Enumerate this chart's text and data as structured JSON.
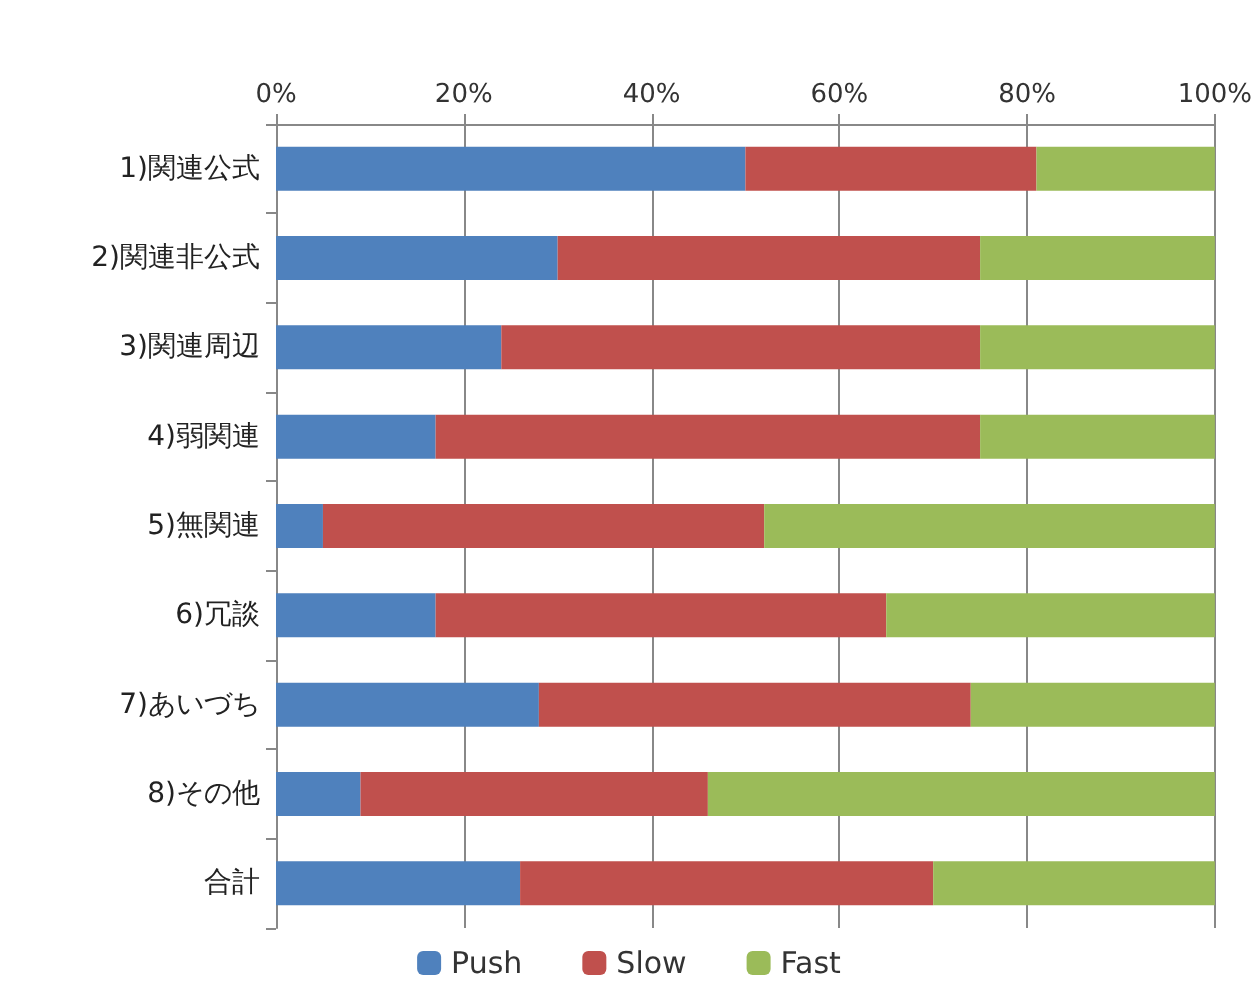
{
  "chart_data": {
    "type": "bar",
    "orientation": "horizontal",
    "stacked": true,
    "categories": [
      "1)関連公式",
      "2)関連非公式",
      "3)関連周辺",
      "4)弱関連",
      "5)無関連",
      "6)冗談",
      "7)あいづち",
      "8)その他",
      "合計"
    ],
    "series": [
      {
        "name": "Push",
        "color": "#4f81bd",
        "values": [
          50,
          30,
          24,
          17,
          5,
          17,
          28,
          9,
          26
        ]
      },
      {
        "name": "Slow",
        "color": "#c0504d",
        "values": [
          31,
          45,
          51,
          58,
          47,
          48,
          46,
          37,
          44
        ]
      },
      {
        "name": "Fast",
        "color": "#9bbb59",
        "values": [
          19,
          25,
          25,
          25,
          48,
          35,
          26,
          54,
          30
        ]
      }
    ],
    "xlim": [
      0,
      100
    ],
    "xticks": [
      {
        "value": 0,
        "label": "0%"
      },
      {
        "value": 20,
        "label": "20%"
      },
      {
        "value": 40,
        "label": "40%"
      },
      {
        "value": 60,
        "label": "60%"
      },
      {
        "value": 80,
        "label": "80%"
      },
      {
        "value": 100,
        "label": "100%"
      }
    ],
    "grid": "x",
    "legend": "bottom"
  }
}
